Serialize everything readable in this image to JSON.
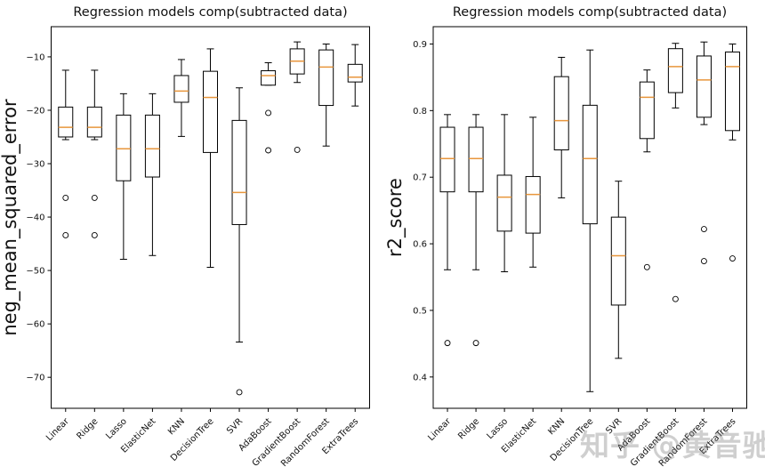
{
  "figure": {
    "background": "#ffffff"
  },
  "watermark": {
    "text": "知乎 @黄音驰"
  },
  "chart_data": [
    {
      "type": "boxplot",
      "title": "Regression models comp(subtracted data)",
      "ylabel": "neg_mean_squared_error",
      "categories": [
        "Linear",
        "Ridge",
        "Lasso",
        "ElasticNet",
        "KNN",
        "DecisionTree",
        "SVR",
        "AdaBoost",
        "GradientBoost",
        "RandomForest",
        "ExtraTrees"
      ],
      "ylim": [
        -75.8,
        -4.35
      ],
      "yticks": [
        {
          "v": -10,
          "label": "−10"
        },
        {
          "v": -20,
          "label": "−20"
        },
        {
          "v": -30,
          "label": "−30"
        },
        {
          "v": -40,
          "label": "−40"
        },
        {
          "v": -50,
          "label": "−50"
        },
        {
          "v": -60,
          "label": "−60"
        },
        {
          "v": -70,
          "label": "−70"
        }
      ],
      "median_color": "#e8963c",
      "line_color": "#000000",
      "boxes": [
        {
          "whislo": -25.5,
          "q1": -25.0,
          "med": -23.2,
          "q3": -19.4,
          "whishi": -12.5,
          "fliers": [
            -36.4,
            -43.4
          ]
        },
        {
          "whislo": -25.5,
          "q1": -25.0,
          "med": -23.2,
          "q3": -19.4,
          "whishi": -12.5,
          "fliers": [
            -36.4,
            -43.4
          ]
        },
        {
          "whislo": -47.9,
          "q1": -33.2,
          "med": -27.2,
          "q3": -20.9,
          "whishi": -16.9,
          "fliers": []
        },
        {
          "whislo": -47.2,
          "q1": -32.5,
          "med": -27.2,
          "q3": -20.9,
          "whishi": -16.9,
          "fliers": []
        },
        {
          "whislo": -24.9,
          "q1": -18.5,
          "med": -16.4,
          "q3": -13.5,
          "whishi": -10.5,
          "fliers": []
        },
        {
          "whislo": -49.4,
          "q1": -27.9,
          "med": -17.6,
          "q3": -12.7,
          "whishi": -8.5,
          "fliers": []
        },
        {
          "whislo": -63.4,
          "q1": -41.4,
          "med": -35.4,
          "q3": -21.9,
          "whishi": -15.8,
          "fliers": [
            -72.8
          ]
        },
        {
          "whislo": -15.3,
          "q1": -15.3,
          "med": -13.5,
          "q3": -12.6,
          "whishi": -11.1,
          "fliers": [
            -20.5,
            -27.5
          ]
        },
        {
          "whislo": -14.8,
          "q1": -13.2,
          "med": -10.8,
          "q3": -8.5,
          "whishi": -7.2,
          "fliers": [
            -27.4
          ]
        },
        {
          "whislo": -26.7,
          "q1": -19.1,
          "med": -11.9,
          "q3": -8.7,
          "whishi": -7.6,
          "fliers": []
        },
        {
          "whislo": -19.2,
          "q1": -14.7,
          "med": -13.8,
          "q3": -11.4,
          "whishi": -7.7,
          "fliers": []
        }
      ]
    },
    {
      "type": "boxplot",
      "title": "Regression models comp(subtracted data)",
      "ylabel": "r2_score",
      "categories": [
        "Linear",
        "Ridge",
        "Lasso",
        "ElasticNet",
        "KNN",
        "DecisionTree",
        "SVR",
        "AdaBoost",
        "GradientBoost",
        "RandomForest",
        "ExtraTrees"
      ],
      "ylim": [
        0.353,
        0.926
      ],
      "yticks": [
        {
          "v": 0.9,
          "label": "0.9"
        },
        {
          "v": 0.8,
          "label": "0.8"
        },
        {
          "v": 0.7,
          "label": "0.7"
        },
        {
          "v": 0.6,
          "label": "0.6"
        },
        {
          "v": 0.5,
          "label": "0.5"
        },
        {
          "v": 0.4,
          "label": "0.4"
        }
      ],
      "median_color": "#e8963c",
      "line_color": "#000000",
      "boxes": [
        {
          "whislo": 0.561,
          "q1": 0.678,
          "med": 0.728,
          "q3": 0.775,
          "whishi": 0.794,
          "fliers": [
            0.451
          ]
        },
        {
          "whislo": 0.561,
          "q1": 0.678,
          "med": 0.728,
          "q3": 0.775,
          "whishi": 0.794,
          "fliers": [
            0.451
          ]
        },
        {
          "whislo": 0.558,
          "q1": 0.619,
          "med": 0.67,
          "q3": 0.703,
          "whishi": 0.794,
          "fliers": []
        },
        {
          "whislo": 0.565,
          "q1": 0.616,
          "med": 0.674,
          "q3": 0.701,
          "whishi": 0.79,
          "fliers": []
        },
        {
          "whislo": 0.669,
          "q1": 0.741,
          "med": 0.785,
          "q3": 0.851,
          "whishi": 0.88,
          "fliers": []
        },
        {
          "whislo": 0.378,
          "q1": 0.63,
          "med": 0.728,
          "q3": 0.808,
          "whishi": 0.891,
          "fliers": []
        },
        {
          "whislo": 0.428,
          "q1": 0.508,
          "med": 0.582,
          "q3": 0.64,
          "whishi": 0.694,
          "fliers": []
        },
        {
          "whislo": 0.738,
          "q1": 0.758,
          "med": 0.82,
          "q3": 0.843,
          "whishi": 0.861,
          "fliers": [
            0.565
          ]
        },
        {
          "whislo": 0.804,
          "q1": 0.827,
          "med": 0.866,
          "q3": 0.893,
          "whishi": 0.901,
          "fliers": [
            0.517
          ]
        },
        {
          "whislo": 0.779,
          "q1": 0.79,
          "med": 0.846,
          "q3": 0.882,
          "whishi": 0.903,
          "fliers": [
            0.622,
            0.574
          ]
        },
        {
          "whislo": 0.756,
          "q1": 0.77,
          "med": 0.866,
          "q3": 0.888,
          "whishi": 0.9,
          "fliers": [
            0.578
          ]
        }
      ]
    }
  ]
}
